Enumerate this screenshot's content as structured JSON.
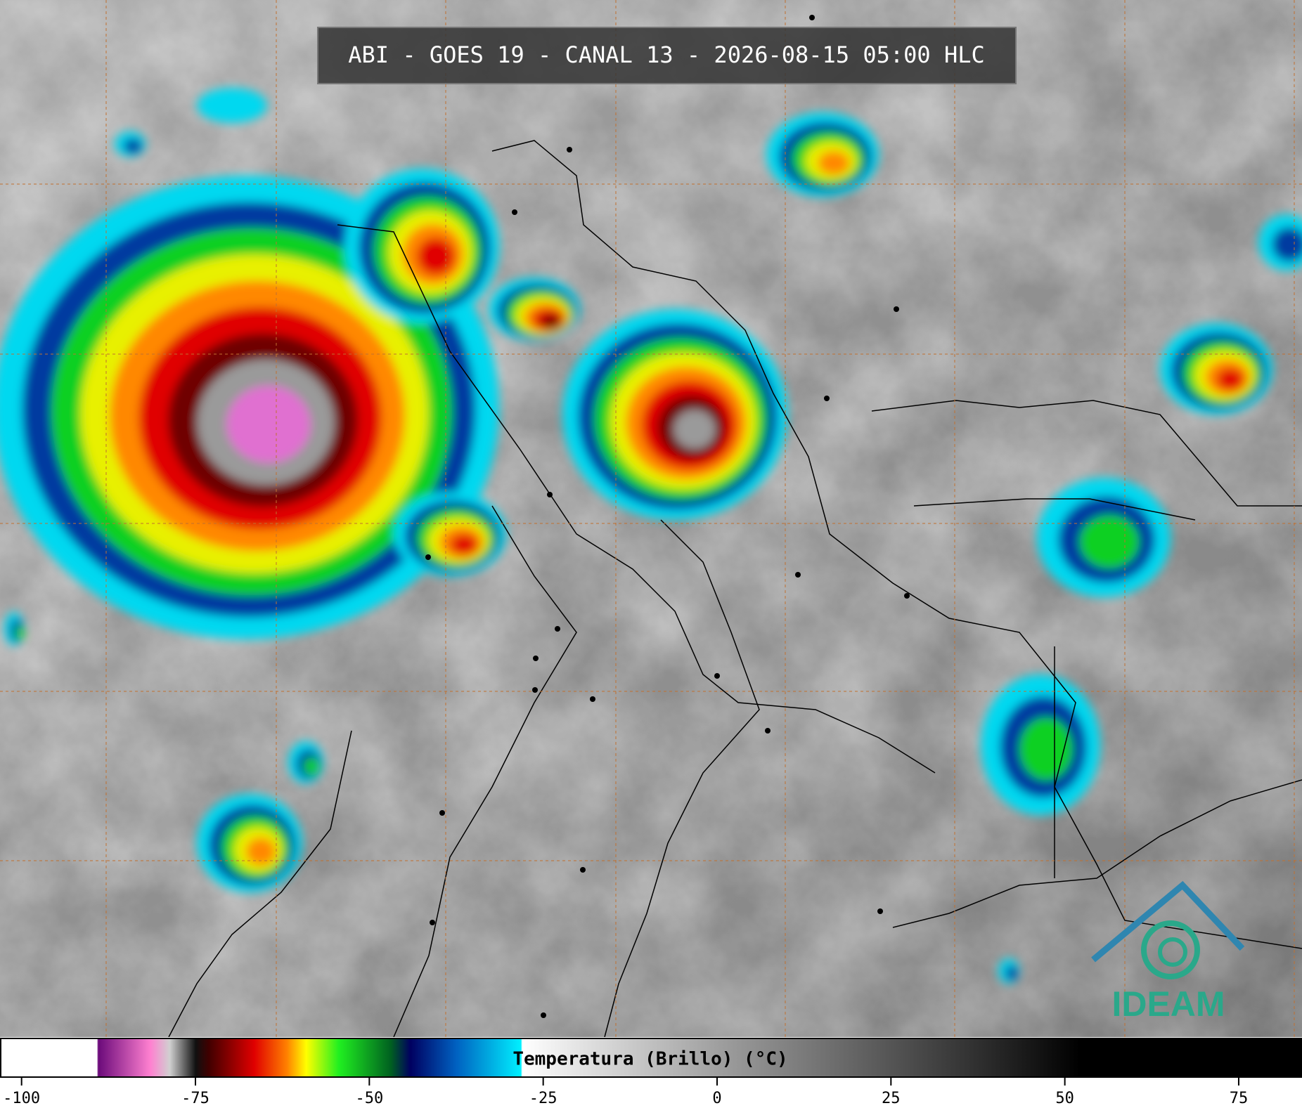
{
  "header": {
    "title": "ABI - GOES 19 - CANAL 13 - 2026-08-15 05:00 HLC"
  },
  "colorbar": {
    "label": "Temperatura (Brillo) (°C)",
    "lim": [
      -103,
      84
    ],
    "ticks": [
      -100,
      -75,
      -50,
      -25,
      0,
      25,
      50,
      75
    ]
  },
  "logo": {
    "text": "IDEAM"
  }
}
